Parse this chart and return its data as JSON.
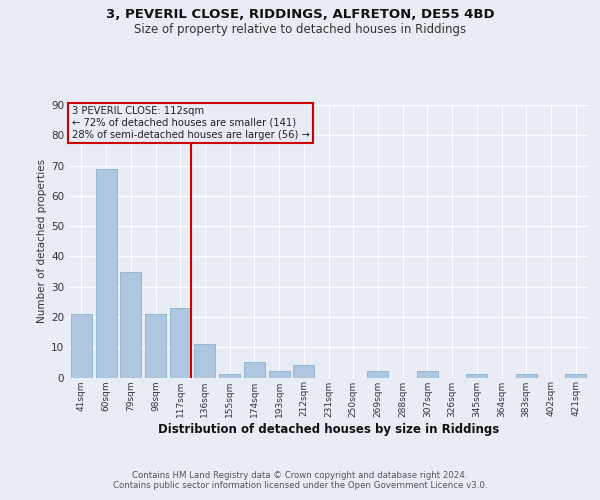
{
  "title1": "3, PEVERIL CLOSE, RIDDINGS, ALFRETON, DE55 4BD",
  "title2": "Size of property relative to detached houses in Riddings",
  "xlabel": "Distribution of detached houses by size in Riddings",
  "ylabel": "Number of detached properties",
  "categories": [
    "41sqm",
    "60sqm",
    "79sqm",
    "98sqm",
    "117sqm",
    "136sqm",
    "155sqm",
    "174sqm",
    "193sqm",
    "212sqm",
    "231sqm",
    "250sqm",
    "269sqm",
    "288sqm",
    "307sqm",
    "326sqm",
    "345sqm",
    "364sqm",
    "383sqm",
    "402sqm",
    "421sqm"
  ],
  "values": [
    21,
    69,
    35,
    21,
    23,
    11,
    1,
    5,
    2,
    4,
    0,
    0,
    2,
    0,
    2,
    0,
    1,
    0,
    1,
    0,
    1
  ],
  "bar_color": "#aec6df",
  "bar_edge_color": "#7aaac8",
  "vline_index": 4,
  "vline_color": "#cc0000",
  "annotation_box_color": "#cc0000",
  "annotation_text": "3 PEVERIL CLOSE: 112sqm\n← 72% of detached houses are smaller (141)\n28% of semi-detached houses are larger (56) →",
  "footnote": "Contains HM Land Registry data © Crown copyright and database right 2024.\nContains public sector information licensed under the Open Government Licence v3.0.",
  "bg_color": "#e8ecf4",
  "plot_bg_color": "#e8ecf4",
  "grid_color": "#ffffff",
  "ylim": [
    0,
    90
  ],
  "yticks": [
    0,
    10,
    20,
    30,
    40,
    50,
    60,
    70,
    80,
    90
  ]
}
